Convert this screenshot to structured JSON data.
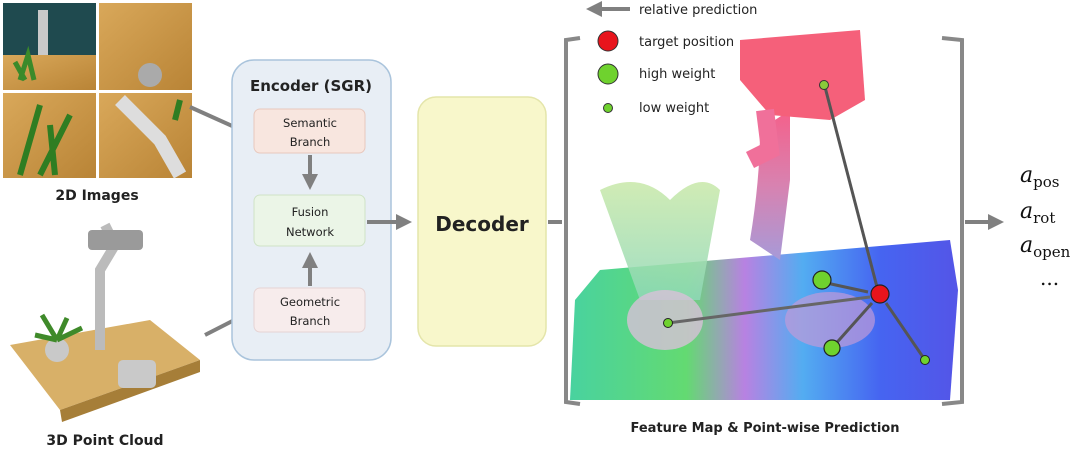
{
  "inputs": {
    "images_label": "2D Images",
    "pointcloud_label": "3D Point Cloud"
  },
  "encoder": {
    "title": "Encoder (SGR)",
    "semantic": [
      "Semantic",
      "Branch"
    ],
    "fusion": [
      "Fusion",
      "Network"
    ],
    "geometric": [
      "Geometric",
      "Branch"
    ]
  },
  "decoder": {
    "title": "Decoder"
  },
  "legend": {
    "relative_prediction": "relative prediction",
    "target_position": "target position",
    "high_weight": "high weight",
    "low_weight": "low weight"
  },
  "feature_map": {
    "caption": "Feature Map & Point-wise Prediction"
  },
  "outputs": [
    {
      "base": "a",
      "sub": "pos"
    },
    {
      "base": "a",
      "sub": "rot"
    },
    {
      "base": "a",
      "sub": "open"
    },
    {
      "base": "...",
      "sub": ""
    }
  ],
  "colors": {
    "encoder_fill": "#e8eef5",
    "semantic_fill": "#f8e6df",
    "fusion_fill": "#ebf5e7",
    "geometric_fill": "#f7ecec",
    "decoder_fill": "#f8f7cb",
    "arrow": "#808080",
    "target": "#e8141c",
    "weight": "#6fd22e"
  }
}
